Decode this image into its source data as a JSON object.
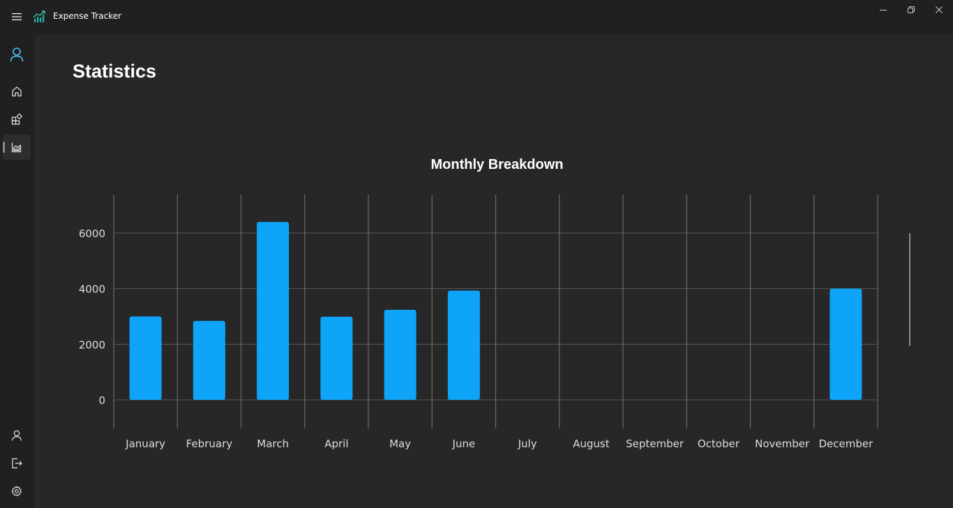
{
  "app": {
    "title": "Expense Tracker"
  },
  "page": {
    "title": "Statistics"
  },
  "icons": {
    "menu": "hamburger-icon",
    "logo": "chart-logo-icon",
    "account": "person-icon",
    "home": "home-icon",
    "categories": "apps-add-icon",
    "statistics": "area-chart-icon",
    "profile": "person-icon",
    "logout": "sign-out-icon",
    "settings": "gear-icon",
    "minimize": "minimize-icon",
    "maximize": "restore-icon",
    "close": "close-icon"
  },
  "colors": {
    "accent": "#0ea5f8",
    "account_icon": "#4cc2ff",
    "logo": "#1fb5a0"
  },
  "chart_data": {
    "type": "bar",
    "title": "Monthly Breakdown",
    "categories": [
      "January",
      "February",
      "March",
      "April",
      "May",
      "June",
      "July",
      "August",
      "September",
      "October",
      "November",
      "December"
    ],
    "values": [
      3000,
      2840,
      6400,
      2990,
      3240,
      3930,
      0,
      0,
      0,
      0,
      0,
      4000
    ],
    "yticks": [
      0,
      2000,
      4000,
      6000
    ],
    "ylim": [
      -1000,
      7400
    ],
    "xlabel": "",
    "ylabel": "",
    "grid": true,
    "bar_color": "#0ea5f8"
  }
}
